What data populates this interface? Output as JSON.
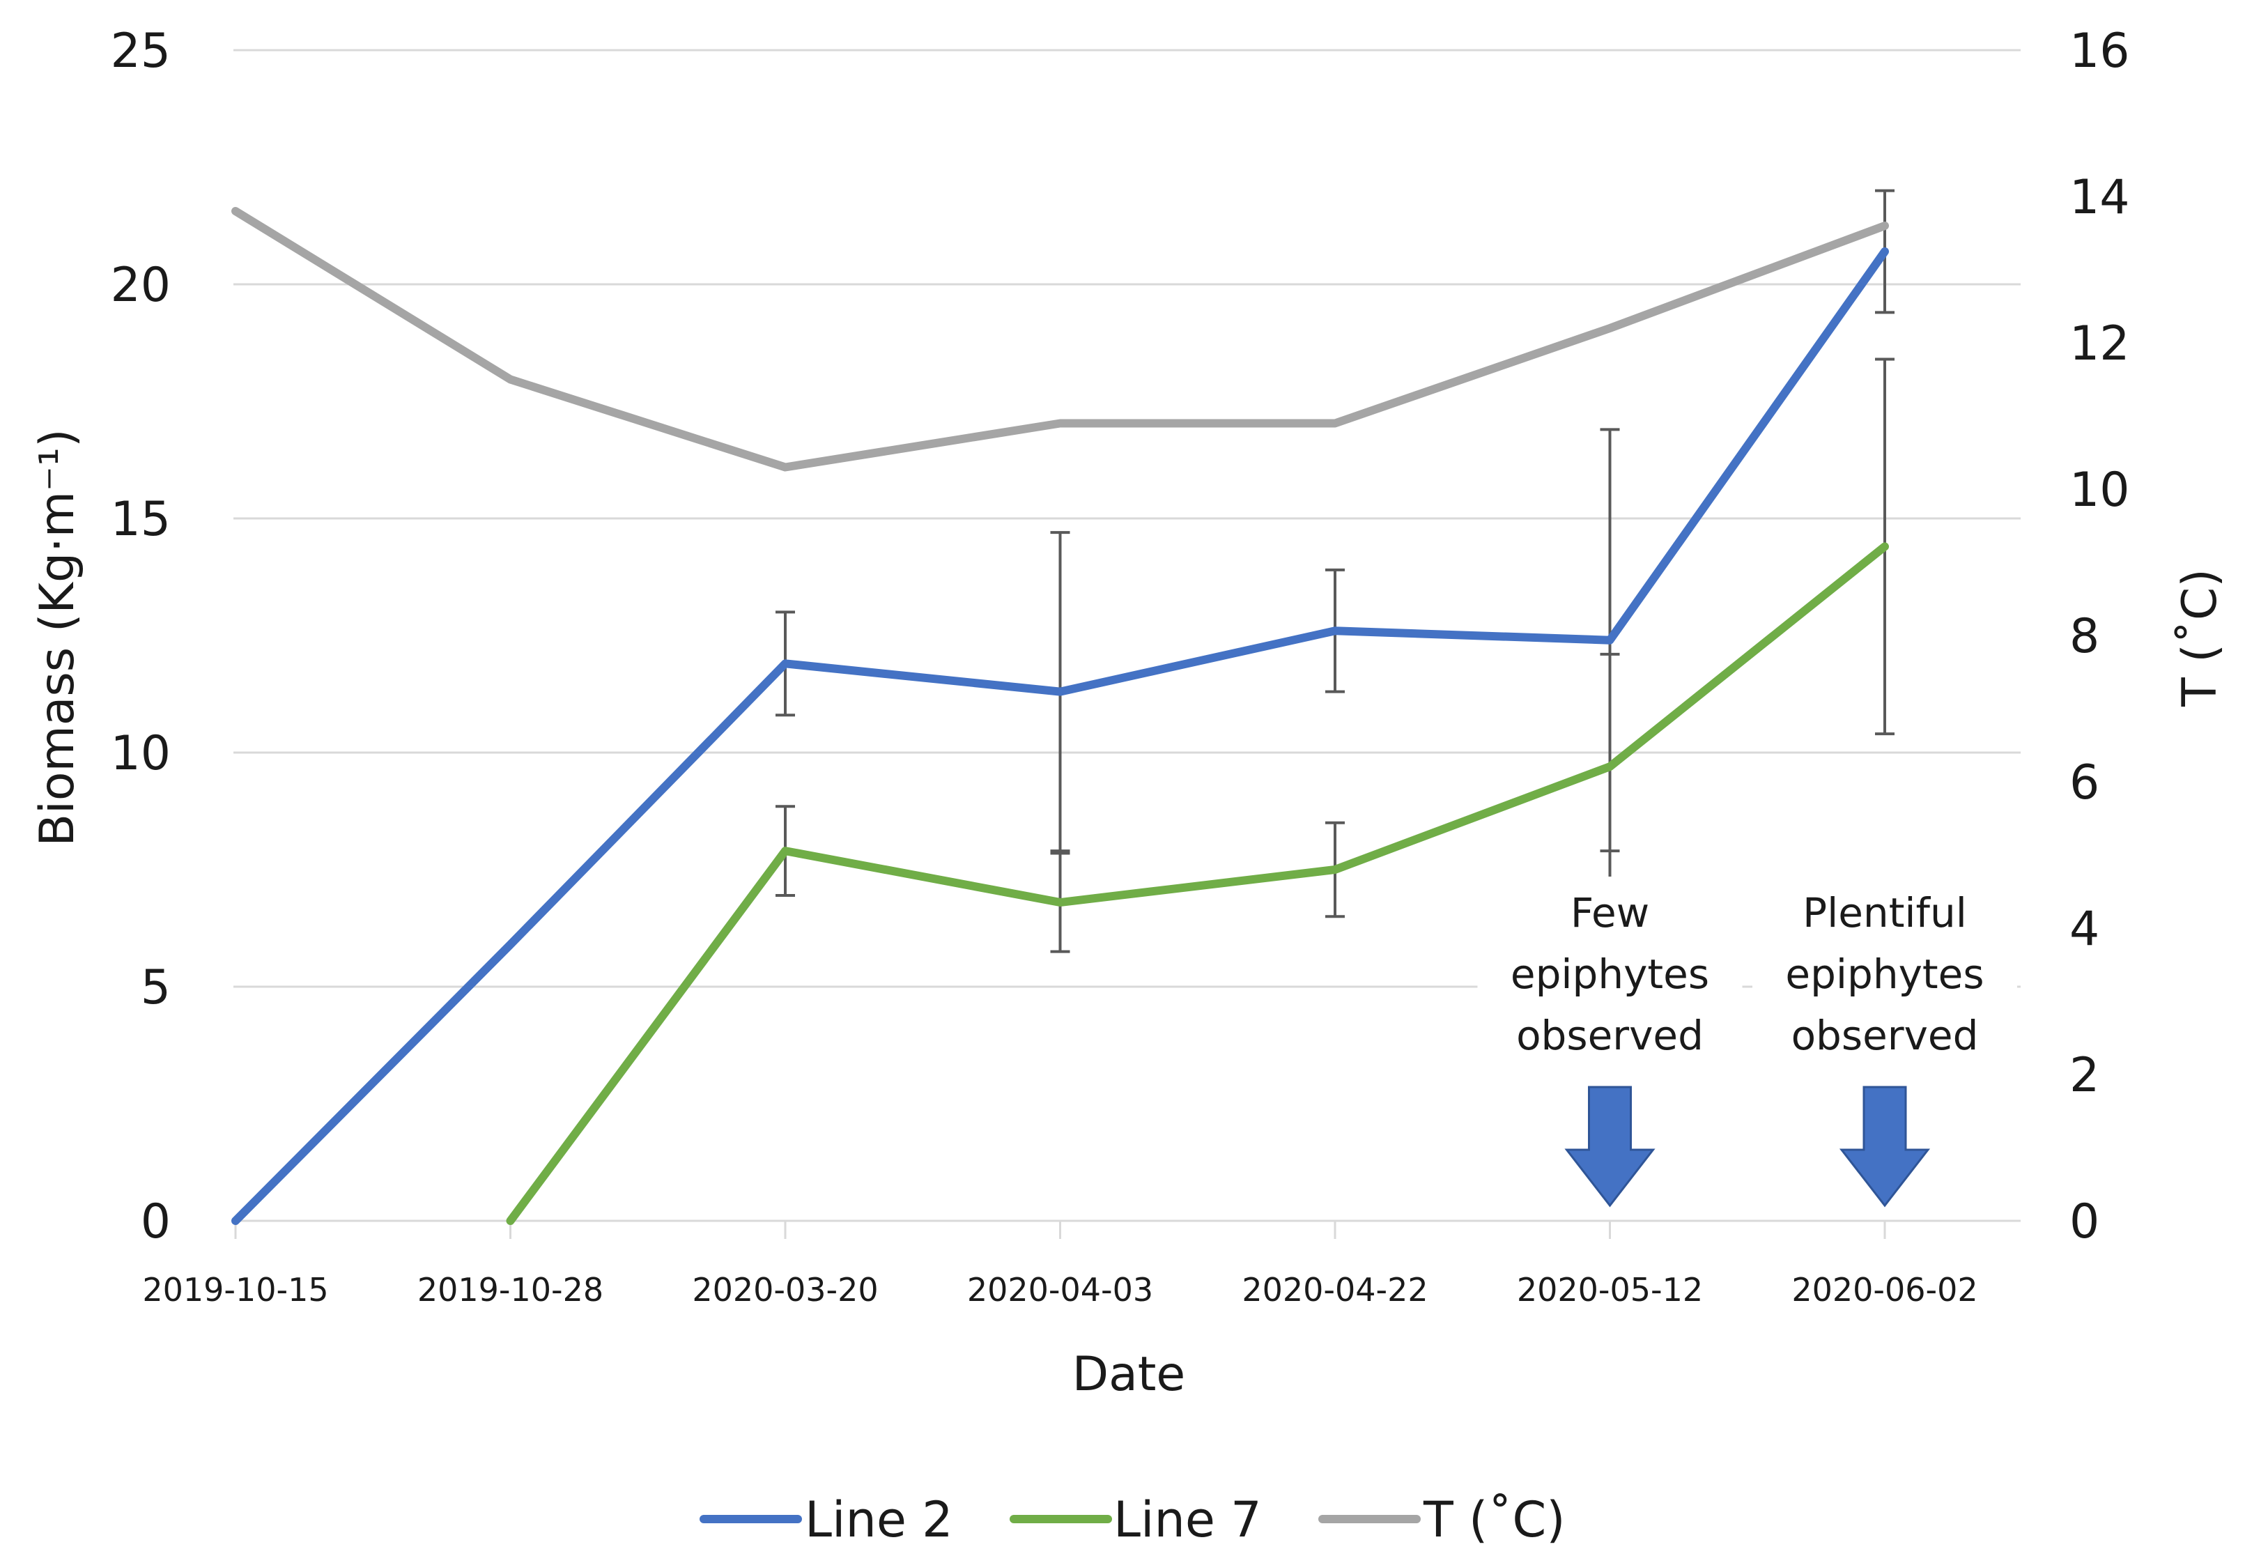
{
  "chart_data": {
    "type": "line",
    "title": "",
    "xlabel": "Date",
    "ylabel": "Biomass (Kg·m⁻¹)",
    "y2label": "T (˚C)",
    "categories": [
      "2019-10-15",
      "2019-10-28",
      "2020-03-20",
      "2020-04-03",
      "2020-04-22",
      "2020-05-12",
      "2020-06-02"
    ],
    "ylim": [
      0,
      25
    ],
    "yticks": [
      "0",
      "5",
      "10",
      "15",
      "20",
      "25"
    ],
    "y2lim": [
      0,
      16
    ],
    "y2ticks": [
      "0",
      "2",
      "4",
      "6",
      "8",
      "10",
      "12",
      "14",
      "16"
    ],
    "grid": true,
    "legend_position": "bottom",
    "series": [
      {
        "name": "Line 2",
        "axis": "left",
        "color": "#4472C4",
        "values": [
          0,
          5.9,
          11.9,
          11.3,
          12.6,
          12.4,
          20.7
        ],
        "error": [
          null,
          null,
          1.1,
          3.4,
          1.3,
          4.5,
          1.3
        ]
      },
      {
        "name": "Line 7",
        "axis": "left",
        "color": "#70AD47",
        "values": [
          null,
          0,
          7.9,
          6.8,
          7.5,
          9.7,
          14.4
        ],
        "error": [
          null,
          null,
          0.95,
          1.05,
          1.0,
          2.4,
          4.0
        ]
      },
      {
        "name": "T (˚C)",
        "axis": "right",
        "color": "#A5A5A5",
        "values": [
          13.8,
          11.5,
          10.3,
          10.9,
          10.9,
          12.2,
          13.6
        ],
        "error": null
      }
    ],
    "annotations": [
      {
        "category": "2020-05-12",
        "lines": [
          "Few",
          "epiphytes",
          "observed"
        ],
        "arrow_color": "#4472C4"
      },
      {
        "category": "2020-06-02",
        "lines": [
          "Plentiful",
          "epiphytes",
          "observed"
        ],
        "arrow_color": "#4472C4"
      }
    ]
  }
}
